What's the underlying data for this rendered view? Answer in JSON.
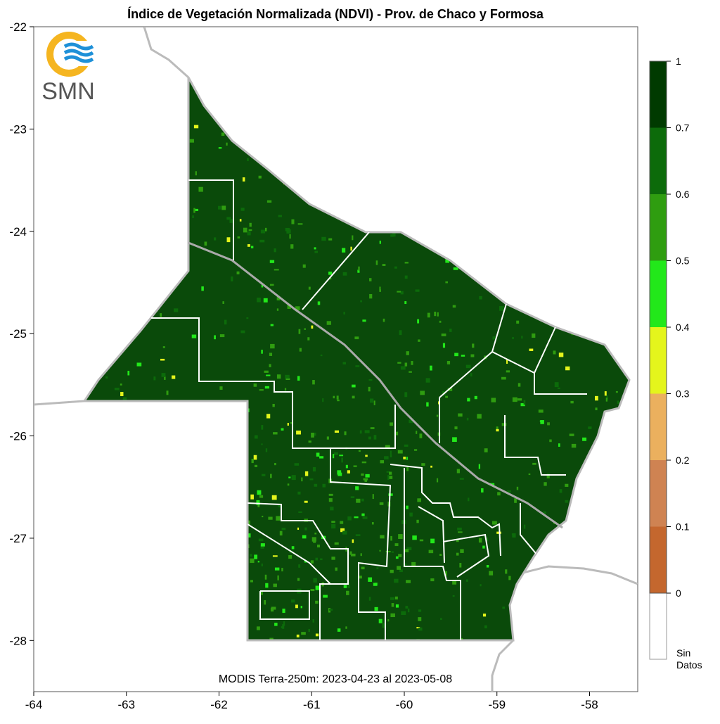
{
  "title": "Índice de Vegetación Normalizada (NDVI) - Prov. de Chaco y Formosa",
  "logo": {
    "text": "SMN"
  },
  "map": {
    "xlim": [
      -64,
      -57.48
    ],
    "ylim": [
      -28.5,
      -22
    ],
    "xticks": [
      -64,
      -63,
      -62,
      -61,
      -60,
      -59,
      -58
    ],
    "yticks": [
      -22,
      -23,
      -24,
      -25,
      -26,
      -27,
      -28
    ],
    "footer": "MODIS Terra-250m: 2023-04-23 al 2023-05-08"
  },
  "legend": {
    "ticks": [
      0,
      0.1,
      0.2,
      0.3,
      0.4,
      0.5,
      0.6,
      0.7,
      1
    ],
    "colors": [
      "#c4672e",
      "#cf8352",
      "#ebb05e",
      "#e4f51c",
      "#22e81a",
      "#2f9d10",
      "#0c6b0a",
      "#003a00"
    ],
    "no_data_label": "Sin Datos"
  }
}
